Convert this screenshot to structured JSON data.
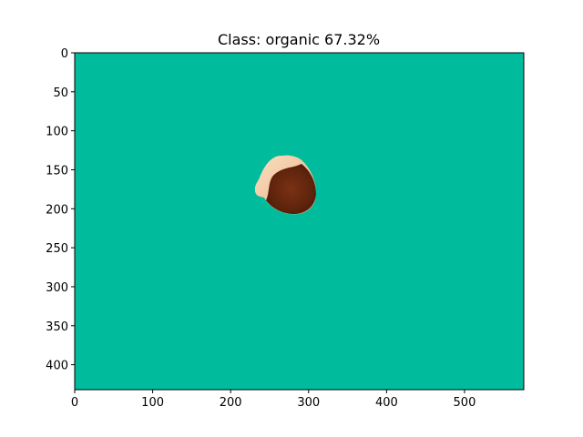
{
  "chart_data": {
    "type": "image",
    "title": "Class: organic 67.32%",
    "xlabel": "",
    "ylabel": "",
    "xlim": [
      0,
      576
    ],
    "ylim": [
      432,
      0
    ],
    "xticks": [
      0,
      100,
      200,
      300,
      400,
      500
    ],
    "yticks": [
      0,
      50,
      100,
      150,
      200,
      250,
      300,
      350,
      400
    ],
    "grid": false,
    "background_color": "#00BC9C",
    "object": {
      "name": "eggshell",
      "colors": {
        "shell_outer": "#F2C49D",
        "shell_inner": "#6B2A10"
      }
    }
  }
}
